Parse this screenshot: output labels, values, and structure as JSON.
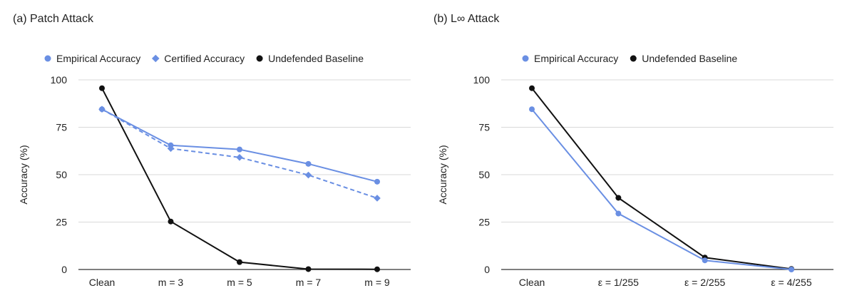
{
  "chart_data": [
    {
      "type": "line",
      "title": "(a) Patch Attack",
      "ylabel": "Accuracy (%)",
      "xlabel": "",
      "ylim": [
        0,
        100
      ],
      "yticks": [
        0,
        25,
        50,
        75,
        100
      ],
      "grid": true,
      "legend_position": "top",
      "categories": [
        "Clean",
        "m = 3",
        "m = 5",
        "m = 7",
        "m = 9"
      ],
      "series": [
        {
          "name": "Empirical Accuracy",
          "values": [
            84.5,
            65.5,
            63.3,
            55.7,
            46.3
          ],
          "color": "#6a8fe3",
          "marker": "circle",
          "dash": false
        },
        {
          "name": "Certified Accuracy",
          "values": [
            84.5,
            63.8,
            59.1,
            49.8,
            37.6
          ],
          "color": "#6a8fe3",
          "marker": "diamond",
          "dash": true
        },
        {
          "name": "Undefended Baseline",
          "values": [
            95.6,
            25.3,
            3.9,
            0.2,
            0.1
          ],
          "color": "#111111",
          "marker": "circle",
          "dash": false
        }
      ]
    },
    {
      "type": "line",
      "title": "(b) L∞  Attack",
      "ylabel": "Accuracy (%)",
      "xlabel": "",
      "ylim": [
        0,
        100
      ],
      "yticks": [
        0,
        25,
        50,
        75,
        100
      ],
      "grid": true,
      "legend_position": "top",
      "categories": [
        "Clean",
        "ε = 1/255",
        "ε = 2/255",
        "ε = 4/255"
      ],
      "series": [
        {
          "name": "Empirical Accuracy",
          "values": [
            84.5,
            29.5,
            4.8,
            0.0
          ],
          "color": "#6a8fe3",
          "marker": "circle",
          "dash": false
        },
        {
          "name": "Undefended Baseline",
          "values": [
            95.6,
            37.8,
            6.3,
            0.3
          ],
          "color": "#111111",
          "marker": "circle",
          "dash": false
        }
      ]
    }
  ]
}
